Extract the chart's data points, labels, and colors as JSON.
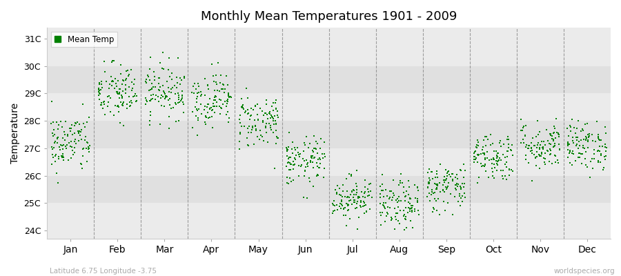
{
  "title": "Monthly Mean Temperatures 1901 - 2009",
  "ylabel": "Temperature",
  "month_labels": [
    "Jan",
    "Feb",
    "Mar",
    "Apr",
    "May",
    "Jun",
    "Jul",
    "Aug",
    "Sep",
    "Oct",
    "Nov",
    "Dec"
  ],
  "ytick_labels": [
    "24C",
    "25C",
    "26C",
    "27C",
    "28C",
    "29C",
    "30C",
    "31C"
  ],
  "ytick_values": [
    24,
    25,
    26,
    27,
    28,
    29,
    30,
    31
  ],
  "ylim": [
    23.7,
    31.4
  ],
  "dot_color": "#008000",
  "stripe_color_light": "#ebebeb",
  "stripe_color_dark": "#e0e0e0",
  "legend_label": "Mean Temp",
  "footer_left": "Latitude 6.75 Longitude -3.75",
  "footer_right": "worldspecies.org",
  "months_means": [
    27.2,
    29.0,
    29.1,
    28.8,
    28.0,
    26.5,
    25.2,
    24.9,
    25.6,
    26.7,
    27.1,
    27.1
  ],
  "months_stds": [
    0.55,
    0.55,
    0.5,
    0.5,
    0.5,
    0.45,
    0.4,
    0.45,
    0.45,
    0.45,
    0.45,
    0.45
  ],
  "n_years": 109
}
